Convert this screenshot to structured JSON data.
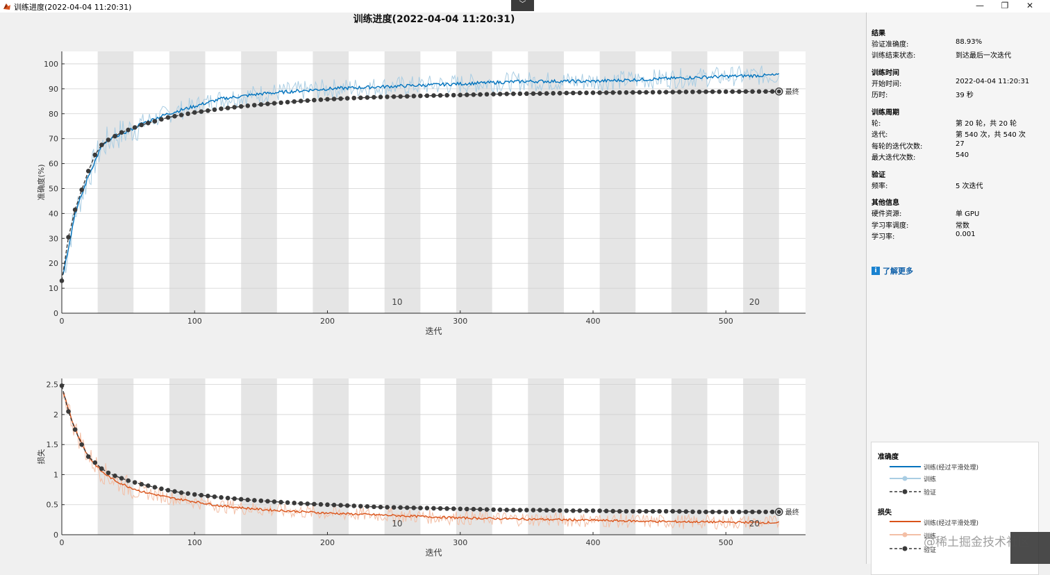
{
  "window": {
    "title": "训练进度(2022-04-04 11:20:31)",
    "minimize_icon": "—",
    "restore_icon": "❐",
    "close_icon": "✕",
    "collapse_icon": "﹀"
  },
  "figure_title": "训练进度(2022-04-04 11:20:31)",
  "colors": {
    "acc_smoothed": "#0072bd",
    "acc_raw": "#a9cde3",
    "loss_smoothed": "#d95319",
    "loss_raw": "#f3bfa6",
    "validation": "#3a3a3a",
    "epoch_band": "#e5e5e5"
  },
  "final_marker_label": "最终",
  "chart_data": [
    {
      "type": "line",
      "name": "accuracy",
      "xlabel": "迭代",
      "ylabel": "准确度(%)",
      "xlim": [
        0,
        560
      ],
      "ylim": [
        0,
        105
      ],
      "xticks": [
        0,
        100,
        200,
        300,
        400,
        500
      ],
      "yticks": [
        0,
        10,
        20,
        30,
        40,
        50,
        60,
        70,
        80,
        90,
        100
      ],
      "epoch_labels": [
        {
          "epoch": 10,
          "x": 248
        },
        {
          "epoch": 20,
          "x": 517
        }
      ],
      "epochs": 20,
      "iters_per_epoch": 27,
      "grid": true,
      "series": [
        {
          "name": "训练(经过平滑处理)",
          "x": [
            0,
            10,
            20,
            30,
            40,
            50,
            60,
            80,
            100,
            120,
            150,
            200,
            250,
            300,
            350,
            400,
            450,
            500,
            540
          ],
          "values": [
            13,
            40,
            55,
            67,
            71,
            73,
            76,
            80,
            83,
            86,
            88,
            90,
            91,
            92,
            93,
            93,
            94,
            95,
            95.5
          ]
        },
        {
          "name": "验证",
          "x": [
            0,
            5,
            10,
            15,
            20,
            25,
            30,
            35,
            40,
            45,
            50,
            55,
            60,
            70,
            80,
            90,
            100,
            120,
            140,
            160,
            180,
            200,
            220,
            240,
            260,
            280,
            300,
            320,
            340,
            360,
            380,
            400,
            420,
            440,
            460,
            480,
            500,
            520,
            540
          ],
          "values": [
            13,
            30.5,
            41.5,
            49.5,
            57,
            63.5,
            67.5,
            69.5,
            71,
            72.5,
            73.5,
            74.5,
            75.5,
            77,
            78.5,
            79.5,
            80.5,
            82,
            83.2,
            84.2,
            85.1,
            85.8,
            86.3,
            86.7,
            87,
            87.3,
            87.5,
            87.8,
            88,
            88.1,
            88.3,
            88.4,
            88.5,
            88.6,
            88.7,
            88.8,
            88.85,
            88.9,
            88.93
          ]
        }
      ]
    },
    {
      "type": "line",
      "name": "loss",
      "xlabel": "迭代",
      "ylabel": "损失",
      "xlim": [
        0,
        560
      ],
      "ylim": [
        0,
        2.6
      ],
      "xticks": [
        0,
        100,
        200,
        300,
        400,
        500
      ],
      "yticks": [
        0,
        0.5,
        1,
        1.5,
        2,
        2.5
      ],
      "ytick_labels": [
        "0",
        "0.5",
        "1",
        "1.5",
        "2",
        "2.5"
      ],
      "epoch_labels": [
        {
          "epoch": 10,
          "x": 248
        },
        {
          "epoch": 20,
          "x": 517
        }
      ],
      "grid": true,
      "series": [
        {
          "name": "训练(经过平滑处理)",
          "x": [
            0,
            10,
            20,
            30,
            40,
            50,
            60,
            80,
            100,
            120,
            150,
            200,
            250,
            300,
            350,
            400,
            450,
            500,
            540
          ],
          "values": [
            2.45,
            1.75,
            1.3,
            1.05,
            0.9,
            0.8,
            0.72,
            0.62,
            0.55,
            0.48,
            0.42,
            0.36,
            0.32,
            0.28,
            0.26,
            0.24,
            0.22,
            0.21,
            0.2
          ]
        },
        {
          "name": "验证",
          "x": [
            0,
            5,
            10,
            15,
            20,
            25,
            30,
            35,
            40,
            45,
            50,
            55,
            60,
            70,
            80,
            90,
            100,
            120,
            140,
            160,
            180,
            200,
            220,
            240,
            260,
            280,
            300,
            320,
            340,
            360,
            380,
            400,
            420,
            440,
            460,
            480,
            500,
            520,
            540
          ],
          "values": [
            2.48,
            2.05,
            1.75,
            1.5,
            1.3,
            1.2,
            1.1,
            1.03,
            0.98,
            0.94,
            0.9,
            0.87,
            0.84,
            0.79,
            0.74,
            0.7,
            0.67,
            0.62,
            0.58,
            0.55,
            0.52,
            0.5,
            0.48,
            0.46,
            0.45,
            0.44,
            0.43,
            0.42,
            0.41,
            0.41,
            0.4,
            0.4,
            0.39,
            0.39,
            0.39,
            0.38,
            0.38,
            0.38,
            0.38
          ]
        }
      ]
    }
  ],
  "info_panel": {
    "results": {
      "header": "结果",
      "val_acc_label": "验证准确度:",
      "val_acc_value": "88.93%",
      "status_label": "训练结束状态:",
      "status_value": "到达最后一次迭代"
    },
    "time": {
      "header": "训练时间",
      "start_label": "开始时间:",
      "start_value": "2022-04-04 11:20:31",
      "elapsed_label": "历时:",
      "elapsed_value": "39 秒"
    },
    "cycle": {
      "header": "训练周期",
      "epoch_label": "轮:",
      "epoch_value": "第 20 轮，共 20 轮",
      "iter_label": "迭代:",
      "iter_value": "第 540 次，共 540 次",
      "iter_per_epoch_label": "每轮的迭代次数:",
      "iter_per_epoch_value": "27",
      "max_iter_label": "最大迭代次数:",
      "max_iter_value": "540"
    },
    "validation": {
      "header": "验证",
      "freq_label": "频率:",
      "freq_value": "5 次迭代"
    },
    "other": {
      "header": "其他信息",
      "hardware_label": "硬件资源:",
      "hardware_value": "单 GPU",
      "schedule_label": "学习率调度:",
      "schedule_value": "常数",
      "lr_label": "学习率:",
      "lr_value": "0.001"
    },
    "learn_more": "了解更多",
    "info_icon": "i"
  },
  "legend": {
    "accuracy_header": "准确度",
    "loss_header": "损失",
    "smoothed": "训练(经过平滑处理)",
    "train": "训练",
    "validation": "验证"
  },
  "watermark": "@稀土掘金技术社区"
}
